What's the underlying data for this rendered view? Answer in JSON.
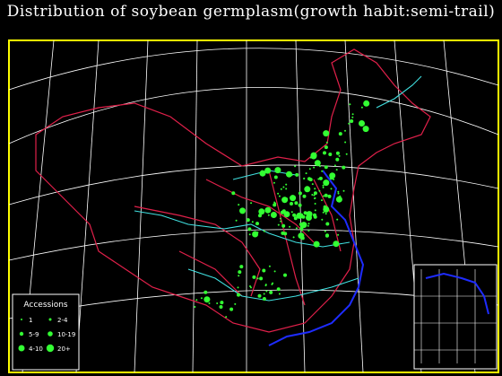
{
  "title": "Distribution of soybean germplasm(growth habit:semi-trail)",
  "colors": {
    "background": "#000000",
    "frame": "#ffff00",
    "province_border": "#e0204a",
    "river": "#40e0e0",
    "coast": "#1e2cff",
    "graticule": "#ffffff",
    "accession_dot": "#33ff33"
  },
  "legend": {
    "title": "Accessions",
    "items": [
      {
        "label": "1",
        "size": "tiny"
      },
      {
        "label": "2-4",
        "size": "small"
      },
      {
        "label": "5-9",
        "size": "medium"
      },
      {
        "label": "10-19",
        "size": "medium-large"
      },
      {
        "label": "4-10",
        "size": "large"
      },
      {
        "label": "20+",
        "size": "xlarge"
      }
    ]
  }
}
